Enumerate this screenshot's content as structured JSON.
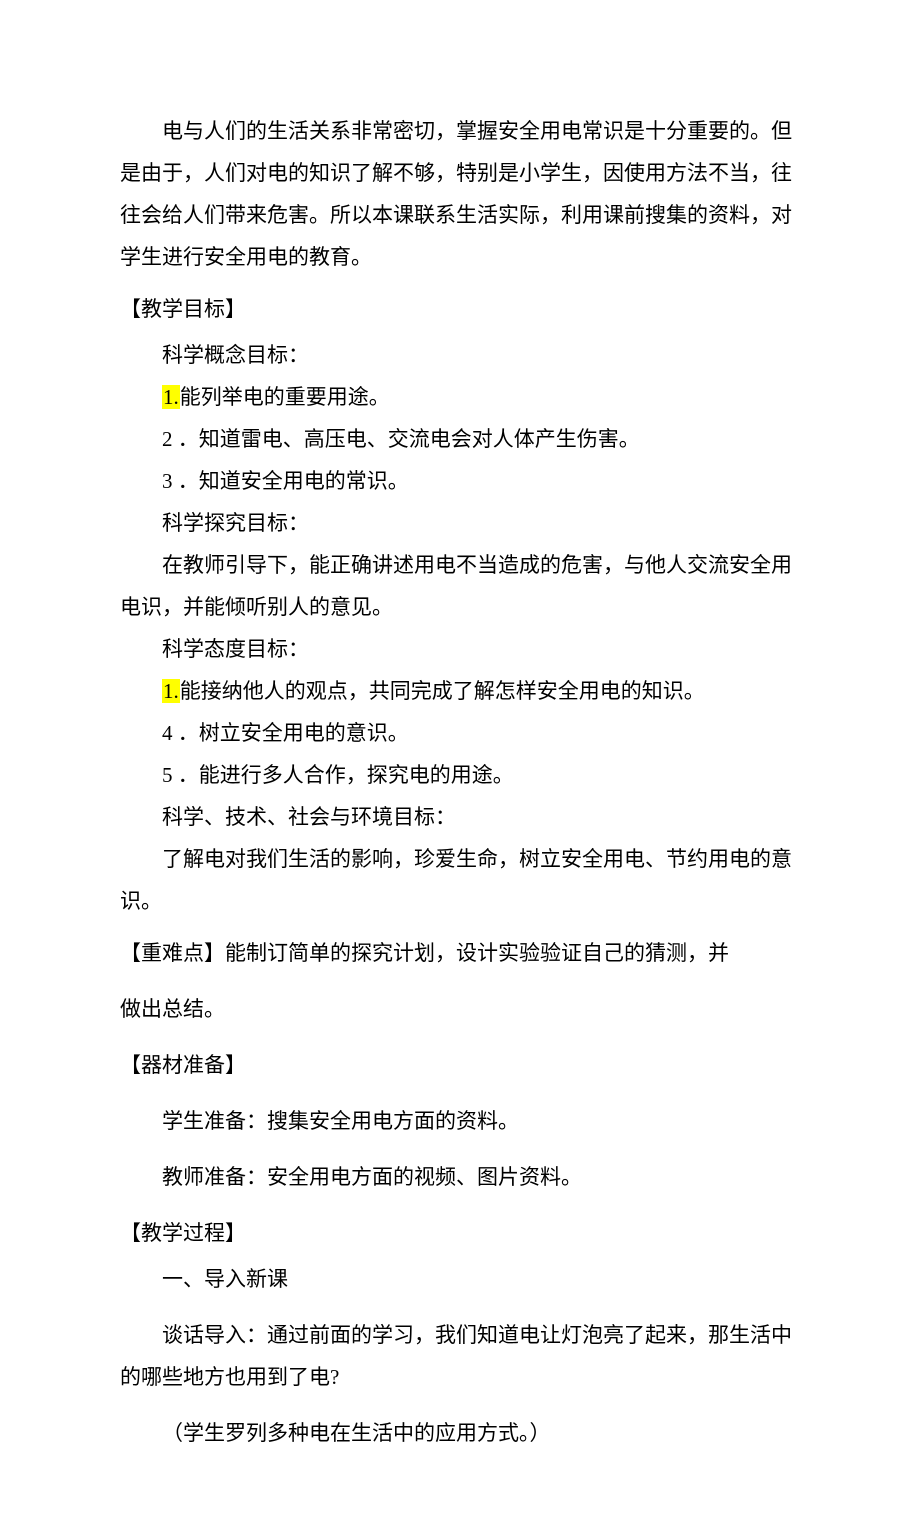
{
  "text_color": "#000000",
  "background_color": "#ffffff",
  "highlight_color": "#ffff00",
  "font_size_pt": 16,
  "intro": "电与人们的生活关系非常密切，掌握安全用电常识是十分重要的。但是由于，人们对电的知识了解不够，特别是小学生，因使用方法不当，往往会给人们带来危害。所以本课联系生活实际，利用课前搜集的资料，对学生进行安全用电的教育。",
  "sections": {
    "goals": {
      "header": "【教学目标】",
      "blocks": {
        "concept": {
          "title": "科学概念目标：",
          "item1_num": "1.",
          "item1_text": "能列举电的重要用途。",
          "item2": "2 ．知道雷电、高压电、交流电会对人体产生伤害。",
          "item3": "3 ．知道安全用电的常识。"
        },
        "inquiry": {
          "title": "科学探究目标：",
          "body": "在教师引导下，能正确讲述用电不当造成的危害，与他人交流安全用电识，并能倾听别人的意见。"
        },
        "attitude": {
          "title": "科学态度目标：",
          "item1_num": "1.",
          "item1_text": "能接纳他人的观点，共同完成了解怎样安全用电的知识。",
          "item4": "4 ．树立安全用电的意识。",
          "item5": "5 ．能进行多人合作，探究电的用途。"
        },
        "env": {
          "title": "科学、技术、社会与环境目标：",
          "body": "了解电对我们生活的影响，珍爱生命，树立安全用电、节约用电的意识。"
        }
      }
    },
    "keypoints": {
      "line1": "【重难点】能制订简单的探究计划，设计实验验证自己的猜测，并",
      "line2": "做出总结。"
    },
    "materials": {
      "header": "【器材准备】",
      "student": "学生准备：搜集安全用电方面的资料。",
      "teacher": "教师准备：安全用电方面的视频、图片资料。"
    },
    "process": {
      "header": "【教学过程】",
      "subheader": "一、导入新课",
      "talk": "谈话导入：通过前面的学习，我们知道电让灯泡亮了起来，那生活中的哪些地方也用到了电?",
      "note": "（学生罗列多种电在生活中的应用方式。）"
    }
  }
}
